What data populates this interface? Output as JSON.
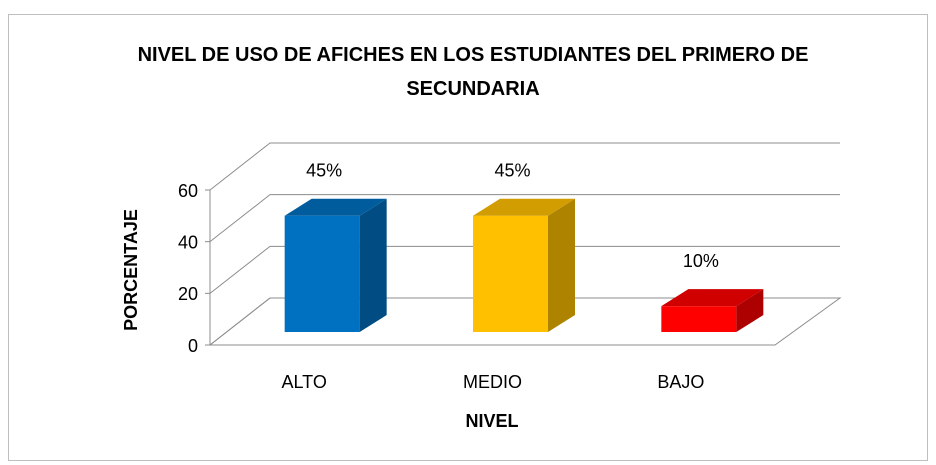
{
  "chart_data": {
    "type": "bar3d",
    "title": "NIVEL DE USO DE AFICHES EN LOS ESTUDIANTES DEL PRIMERO DE SECUNDARIA",
    "xlabel": "NIVEL",
    "ylabel": "PORCENTAJE",
    "categories": [
      "ALTO",
      "MEDIO",
      "BAJO"
    ],
    "values": [
      45,
      45,
      10
    ],
    "value_labels": [
      "45%",
      "45%",
      "10%"
    ],
    "colors": [
      "#0070c0",
      "#ffc000",
      "#ff0000"
    ],
    "ylim": [
      0,
      60
    ],
    "yticks": [
      0,
      20,
      40,
      60
    ],
    "grid": true
  }
}
